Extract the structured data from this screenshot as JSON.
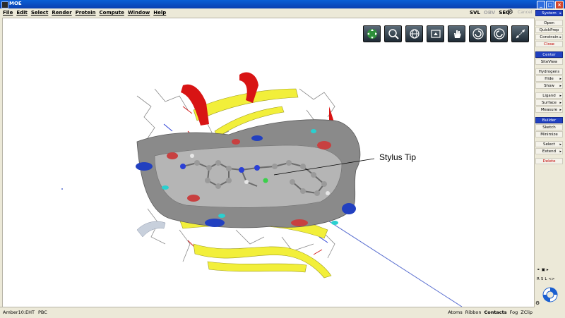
{
  "window": {
    "title": "MOE"
  },
  "menu": [
    "File",
    "Edit",
    "Select",
    "Render",
    "Protein",
    "Compute",
    "Window",
    "Help"
  ],
  "modes": {
    "svl": "SVL",
    "obv": "OBV",
    "seq": "SEQ",
    "cancel": "Cancel"
  },
  "toolbar_icons": [
    "move-icon",
    "zoom-icon",
    "globe-icon",
    "screenshot-icon",
    "hand-icon",
    "rotate-ccw-icon",
    "rotate-cw-icon",
    "slab-icon"
  ],
  "viewport": {
    "annotation": "Stylus Tip"
  },
  "sidebar": {
    "system": "System",
    "buttons": [
      {
        "label": "Open",
        "style": "normal"
      },
      {
        "label": "QuickPrep",
        "style": "normal"
      },
      {
        "label": "Constrain",
        "style": "normal",
        "arrow": true
      },
      {
        "label": "Close",
        "style": "red"
      },
      {
        "label": "Center",
        "style": "blue"
      },
      {
        "label": "SiteView",
        "style": "normal"
      },
      {
        "label": "Hydrogens",
        "style": "normal"
      },
      {
        "label": "Hide",
        "style": "normal",
        "arrow": true
      },
      {
        "label": "Show",
        "style": "normal",
        "arrow": true
      },
      {
        "label": "Ligand",
        "style": "normal",
        "arrow": true
      },
      {
        "label": "Surface",
        "style": "normal",
        "arrow": true
      },
      {
        "label": "Measure",
        "style": "normal",
        "arrow": true
      },
      {
        "label": "Builder",
        "style": "blue"
      },
      {
        "label": "Sketch",
        "style": "normal"
      },
      {
        "label": "Minimize",
        "style": "normal"
      },
      {
        "label": "Select",
        "style": "normal",
        "arrow": true
      },
      {
        "label": "Extend",
        "style": "normal",
        "arrow": true
      },
      {
        "label": "Delete",
        "style": "red"
      }
    ],
    "mini_labels": [
      "R",
      "S",
      "L",
      "<>"
    ]
  },
  "status": {
    "forcefield": "Amber10:EHT",
    "pbc": "PBC",
    "right": [
      "Atoms",
      "Ribbon",
      "Contacts",
      "Fog",
      "ZClip"
    ]
  },
  "colors": {
    "accent": "#2040c0",
    "titlebar": "#0a4fc4",
    "surface_gray": "#8a8a8a",
    "ribbon_yellow": "#f2ef3a",
    "helix_red": "#d81414"
  }
}
